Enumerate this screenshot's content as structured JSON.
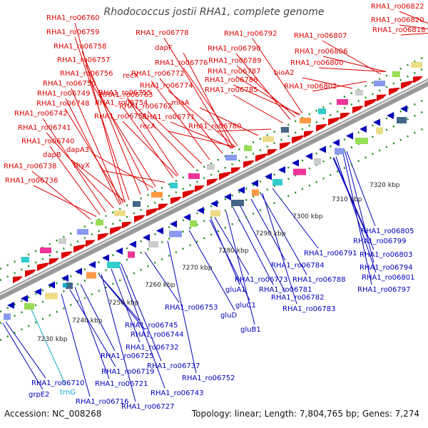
{
  "title": "Rhodococcus jostii RHA1, complete genome",
  "footer": {
    "accession": "Accession: NC_008268",
    "summary": "Topology: linear; Length: 7,804,765 bp; Genes: 7,274"
  },
  "colors": {
    "forward": "#dd0000",
    "reverse": "#0000bb",
    "rna": "#11aacc",
    "track": "#888888",
    "dot": "#1e8a1e"
  },
  "ticks": [
    "7230 kbp",
    "7240 kbp",
    "7250 kbp",
    "7260 kbp",
    "7270 kbp",
    "7280 kbp",
    "7290 kbp",
    "7300 kbp",
    "7310 kbp",
    "7320 kbp"
  ],
  "forward_labels": [
    "RHA1_ro06760",
    "RHA1_ro06759",
    "RHA1_ro06758",
    "RHA1_ro06757",
    "RHA1_ro06756",
    "RHA1_ro06750",
    "RHA1_ro06749",
    "RHA1_ro06748",
    "RHA1_ro06742",
    "RHA1_ro06741",
    "RHA1_ro06740",
    "dapB",
    "RHA1_ro06738",
    "RHA1_ro06736",
    "RHA1_ro06755",
    "RHA1_ro06754",
    "RHA1_ro06751",
    "dapA3",
    "thyX",
    "RHA1_ro06778",
    "dapF",
    "RHA1_ro06776",
    "recX",
    "RHA1_ro06772",
    "RHA1_ro06774",
    "RHA1_ro06763",
    "RHA1_ro06762",
    "miaA",
    "RHA1_ro06771",
    "recA",
    "RHA1_ro06792",
    "RHA1_ro06790",
    "RHA1_ro06789",
    "RHA1_ro06787",
    "RHA1_ro06786",
    "RHA1_ro06785",
    "RHA1_ro06780",
    "RHA1_ro06807",
    "RHA1_ro06806",
    "RHA1_ro06800",
    "bioA2",
    "RHA1_ro06802",
    "RHA1_ro06822",
    "RHA1_ro06820",
    "RHA1_ro06818"
  ],
  "reverse_labels": [
    "RHA1_ro06805",
    "RHA1_ro06799",
    "RHA1_ro06803",
    "RHA1_ro06791",
    "RHA1_ro06794",
    "RHA1_ro06784",
    "RHA1_ro06801",
    "RHA1_ro06788",
    "RHA1_ro06797",
    "RHA1_ro06773",
    "RHA1_ro06781",
    "RHA1_ro06782",
    "gluA1",
    "RHA1_ro06783",
    "gluC1",
    "gluD",
    "gluB1",
    "RHA1_ro06753",
    "RHA1_ro06745",
    "RHA1_ro06744",
    "RHA1_ro06732",
    "RHA1_ro06725",
    "RHA1_ro06737",
    "RHA1_ro06719",
    "RHA1_ro06752",
    "RHA1_ro06721",
    "RHA1_ro06710",
    "RHA1_ro06743",
    "RHA1_ro06716",
    "RHA1_ro06727",
    "grpE2"
  ],
  "rna_labels": [
    "trnG"
  ]
}
